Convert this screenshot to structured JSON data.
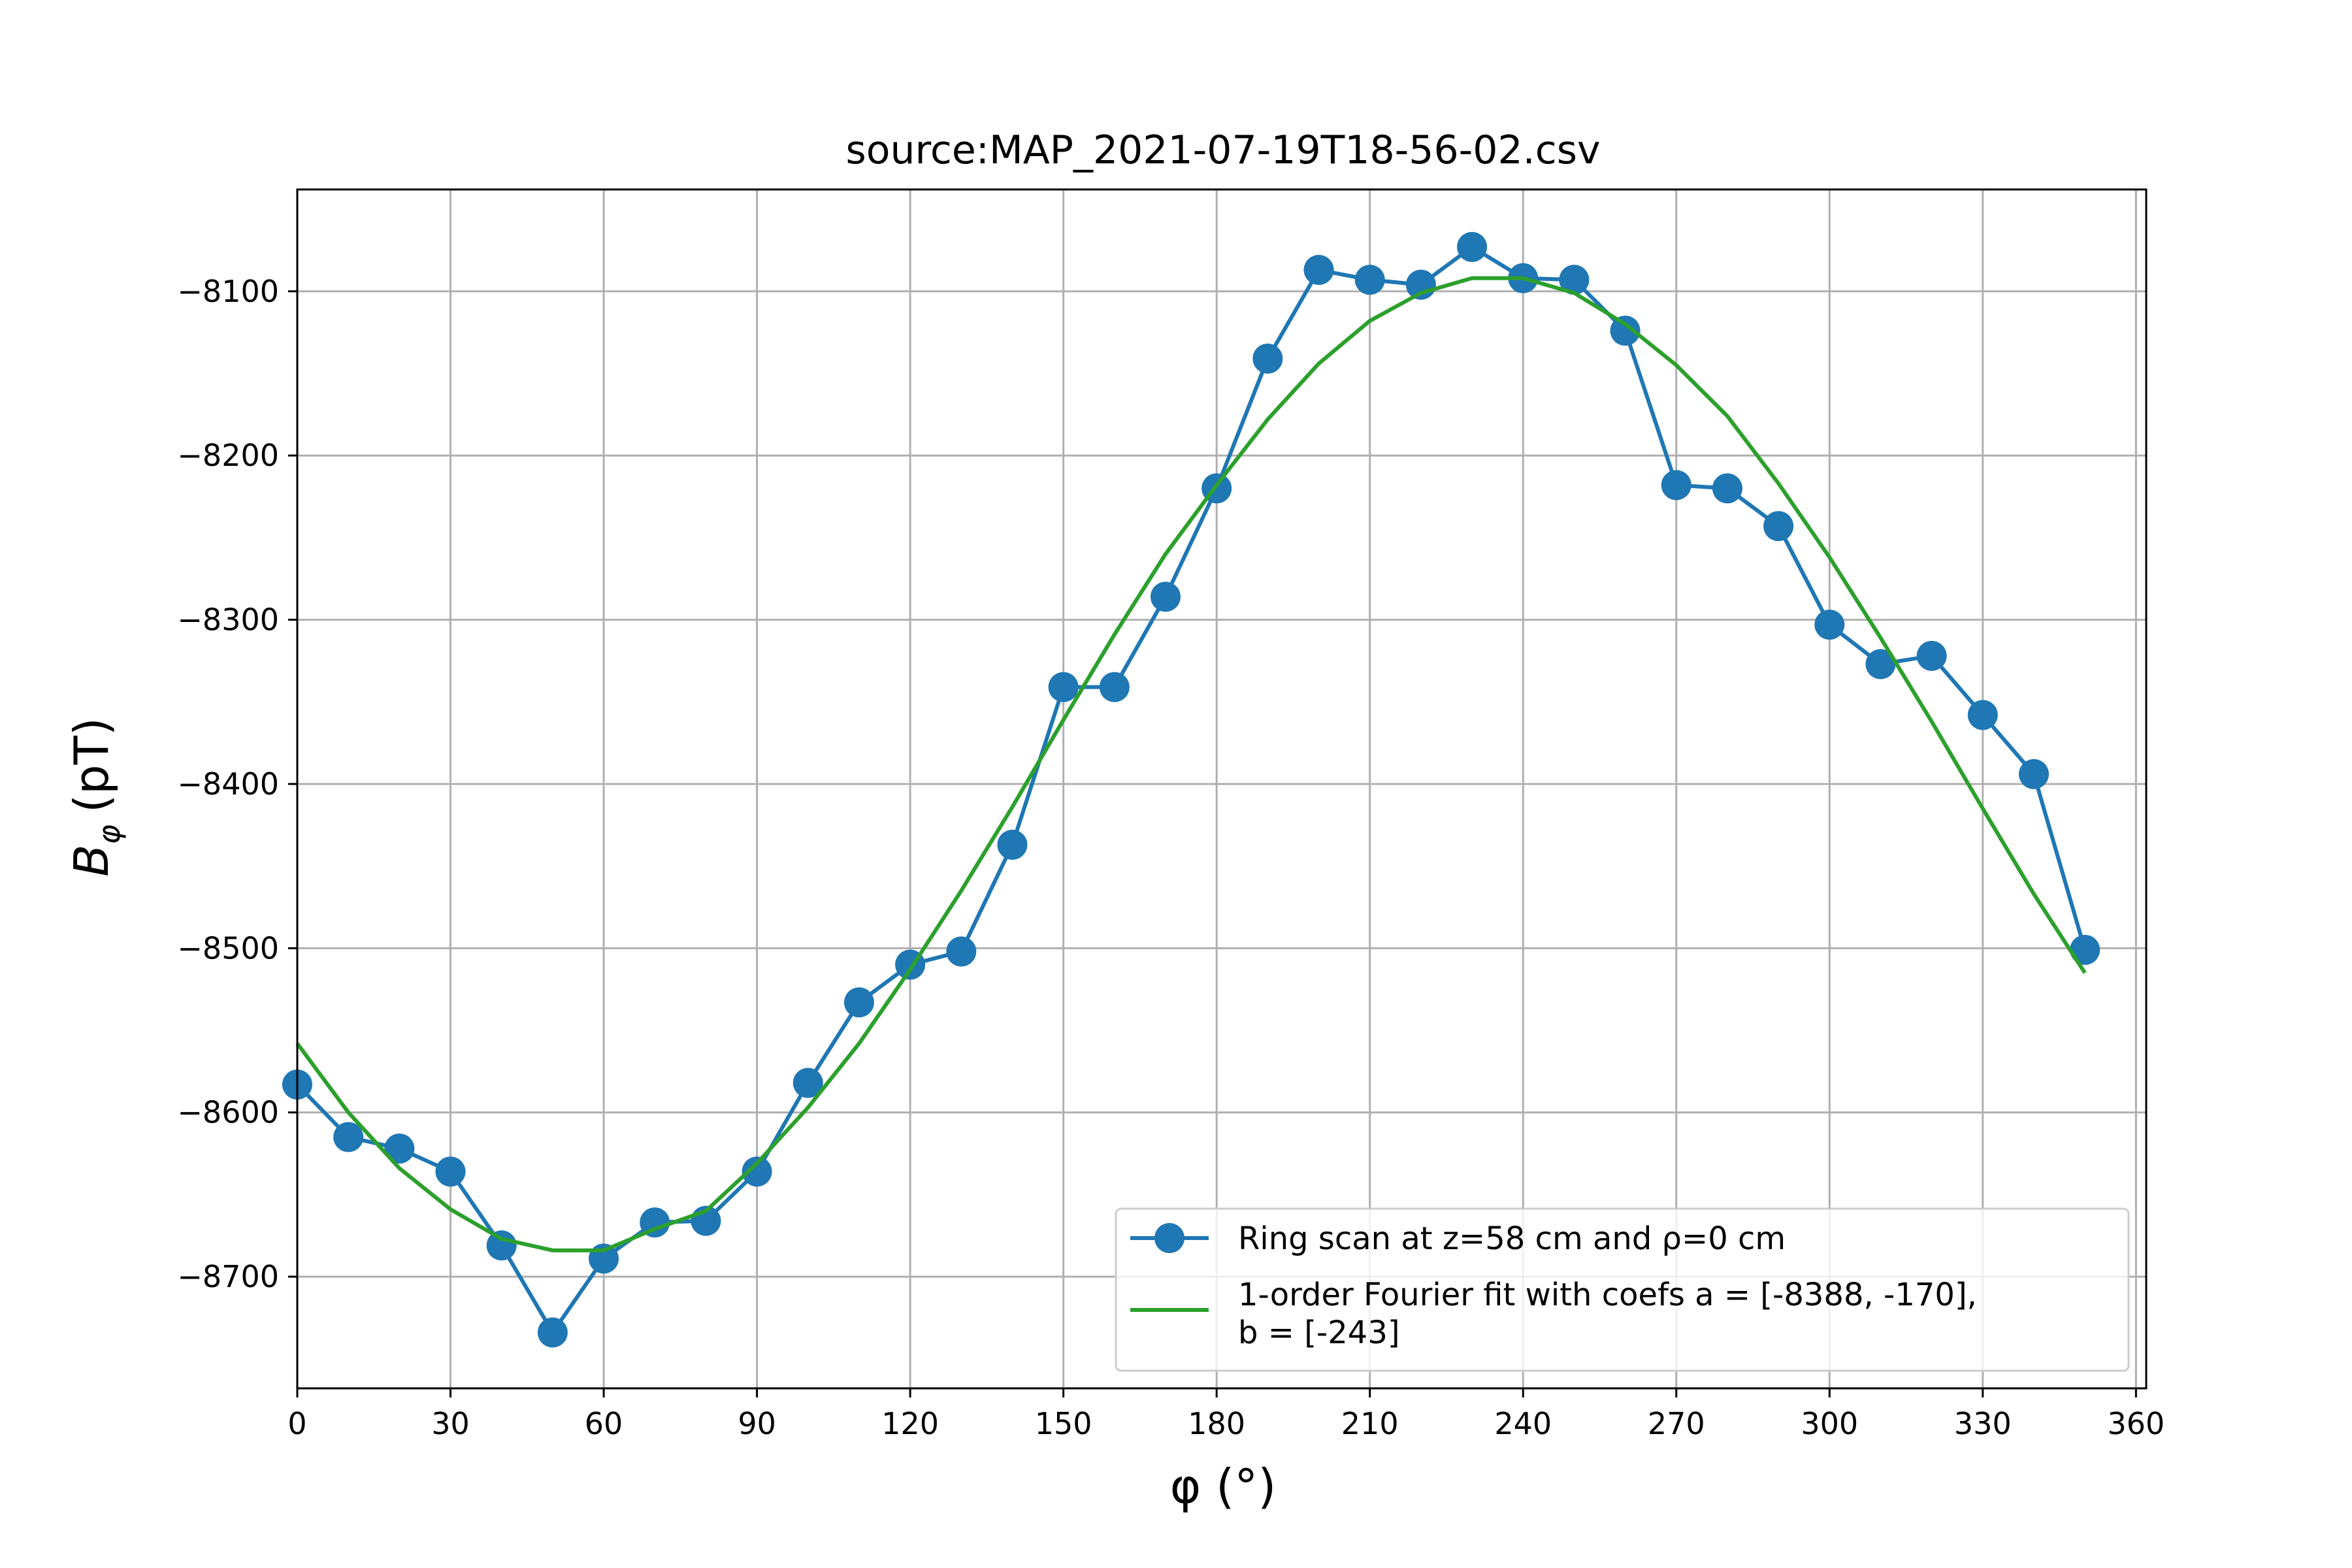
{
  "chart_data": {
    "type": "line",
    "title": "source:MAP_2021-07-19T18-56-02.csv",
    "xlabel": "φ (°)",
    "ylabel_main": "B",
    "ylabel_sub": "φ",
    "ylabel_unit": "(pT)",
    "xlim": [
      0,
      362
    ],
    "ylim": [
      -8768,
      -8038
    ],
    "xticks": [
      0,
      30,
      60,
      90,
      120,
      150,
      180,
      210,
      240,
      270,
      300,
      330,
      360
    ],
    "yticks": [
      -8100,
      -8200,
      -8300,
      -8400,
      -8500,
      -8600,
      -8700
    ],
    "ytick_labels": [
      "−8100",
      "−8200",
      "−8300",
      "−8400",
      "−8500",
      "−8600",
      "−8700"
    ],
    "grid": true,
    "legend_position": "lower-right",
    "series": [
      {
        "name": "Ring scan at z=58 cm and ρ=0 cm",
        "color": "#1f77b4",
        "marker": "circle",
        "x": [
          0,
          10,
          20,
          30,
          40,
          50,
          60,
          70,
          80,
          90,
          100,
          110,
          120,
          130,
          140,
          150,
          160,
          170,
          180,
          190,
          200,
          210,
          220,
          230,
          240,
          250,
          260,
          270,
          280,
          290,
          300,
          310,
          320,
          330,
          340,
          350
        ],
        "y": [
          -8583,
          -8615,
          -8622,
          -8636,
          -8681,
          -8734,
          -8689,
          -8667,
          -8666,
          -8636,
          -8582,
          -8533,
          -8510,
          -8502,
          -8437,
          -8341,
          -8341,
          -8286,
          -8220,
          -8141,
          -8087,
          -8093,
          -8096,
          -8073,
          -8092,
          -8093,
          -8124,
          -8218,
          -8220,
          -8243,
          -8303,
          -8327,
          -8322,
          -8358,
          -8394,
          -8501
        ]
      },
      {
        "name": "1-order Fourier fit with coefs a = [-8388, -170],\n b = [-243]",
        "color": "#2ca02c",
        "marker": "none",
        "x": [
          0,
          10,
          20,
          30,
          40,
          50,
          60,
          70,
          80,
          90,
          100,
          110,
          120,
          130,
          140,
          150,
          160,
          170,
          180,
          190,
          200,
          210,
          220,
          230,
          240,
          250,
          260,
          270,
          280,
          290,
          300,
          310,
          320,
          330,
          340,
          350
        ],
        "y": [
          -8558,
          -8600,
          -8634,
          -8659,
          -8677,
          -8684,
          -8684,
          -8671,
          -8660,
          -8631,
          -8597,
          -8558,
          -8513,
          -8465,
          -8414,
          -8361,
          -8309,
          -8260,
          -8218,
          -8178,
          -8144,
          -8118,
          -8101,
          -8092,
          -8092,
          -8101,
          -8120,
          -8145,
          -8176,
          -8217,
          -8262,
          -8311,
          -8362,
          -8415,
          -8467,
          -8515
        ]
      }
    ]
  }
}
